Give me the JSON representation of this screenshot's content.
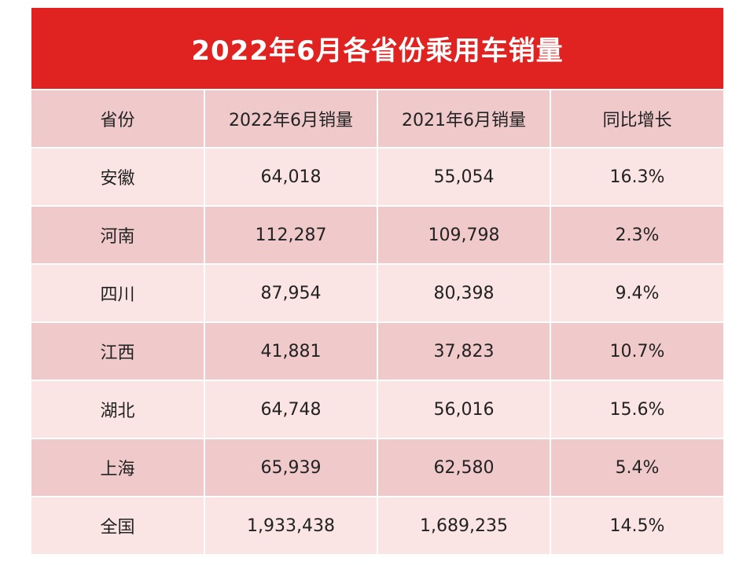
{
  "title": "2022年6月各省份乘用车销量",
  "columns": [
    "省份",
    "2022年6月销量",
    "2021年6月销量",
    "同比增长"
  ],
  "rows": [
    [
      "安徽",
      "64,018",
      "55,054",
      "16.3%"
    ],
    [
      "河南",
      "112,287",
      "109,798",
      "2.3%"
    ],
    [
      "四川",
      "87,954",
      "80,398",
      "9.4%"
    ],
    [
      "江西",
      "41,881",
      "37,823",
      "10.7%"
    ],
    [
      "湖北",
      "64,748",
      "56,016",
      "15.6%"
    ],
    [
      "上海",
      "65,939",
      "62,580",
      "5.4%"
    ],
    [
      "全国",
      "1,933,438",
      "1,689,235",
      "14.5%"
    ]
  ],
  "colors": {
    "title_background": "#e02320",
    "row_light": "#fbe4e4",
    "row_dark": "#f0c9cb"
  },
  "chart_data": {
    "type": "table",
    "title": "2022年6月各省份乘用车销量",
    "columns": [
      "省份",
      "2022年6月销量",
      "2021年6月销量",
      "同比增长"
    ],
    "categories": [
      "安徽",
      "河南",
      "四川",
      "江西",
      "湖北",
      "上海",
      "全国"
    ],
    "series": [
      {
        "name": "2022年6月销量",
        "values": [
          64018,
          112287,
          87954,
          41881,
          64748,
          65939,
          1933438
        ]
      },
      {
        "name": "2021年6月销量",
        "values": [
          55054,
          109798,
          80398,
          37823,
          56016,
          62580,
          1689235
        ]
      },
      {
        "name": "同比增长",
        "values": [
          16.3,
          2.3,
          9.4,
          10.7,
          15.6,
          5.4,
          14.5
        ]
      }
    ]
  }
}
